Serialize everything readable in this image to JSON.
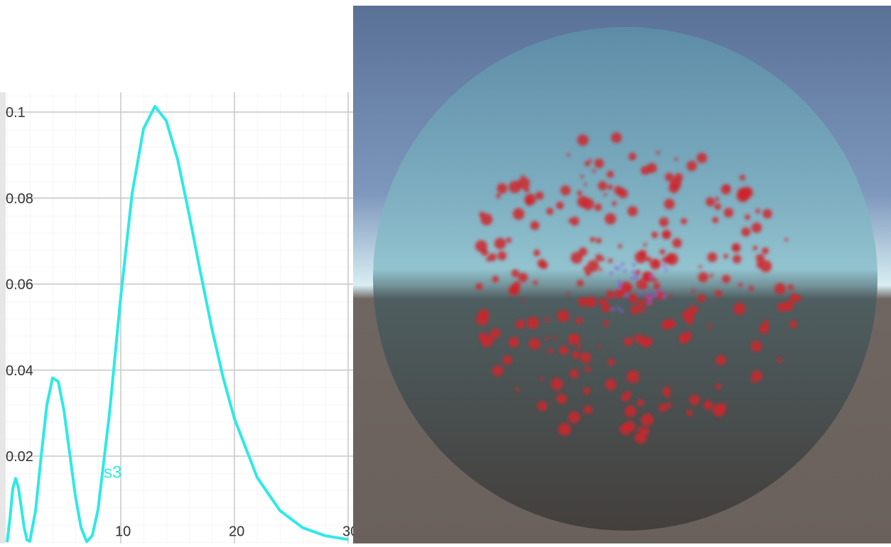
{
  "chart_data": {
    "type": "line",
    "annotation": "s3",
    "x": [
      0,
      0.25,
      0.5,
      0.75,
      1,
      1.25,
      1.5,
      1.75,
      2,
      2.5,
      3,
      3.5,
      4,
      4.5,
      5,
      5.5,
      6,
      6.5,
      7,
      7.5,
      8,
      9,
      10,
      11,
      12,
      13,
      14,
      15,
      16,
      17,
      18,
      19,
      20,
      22,
      24,
      26,
      28,
      30
    ],
    "series": [
      {
        "color": "#2ee9e6",
        "values": [
          0,
          0.0055,
          0.01245,
          0.01483,
          0.01263,
          0.00802,
          0.00341,
          0.00051,
          0.00021,
          0.00726,
          0.02004,
          0.03193,
          0.03819,
          0.03734,
          0.03063,
          0.02079,
          0.01086,
          0.00341,
          0.0001,
          0.00156,
          0.0076,
          0.02975,
          0.05715,
          0.0811,
          0.0961,
          0.1013,
          0.098,
          0.08896,
          0.07637,
          0.06283,
          0.04984,
          0.03831,
          0.02869,
          0.01503,
          0.00735,
          0.00336,
          0.00148,
          0.00062
        ]
      }
    ],
    "xlim": [
      -0.125,
      30.44
    ],
    "ylim": [
      -0.0003,
      0.1046
    ],
    "xticks": [
      10,
      20,
      30
    ],
    "yticks": [
      0.02,
      0.04,
      0.06,
      0.08,
      0.1
    ],
    "grid": true
  }
}
